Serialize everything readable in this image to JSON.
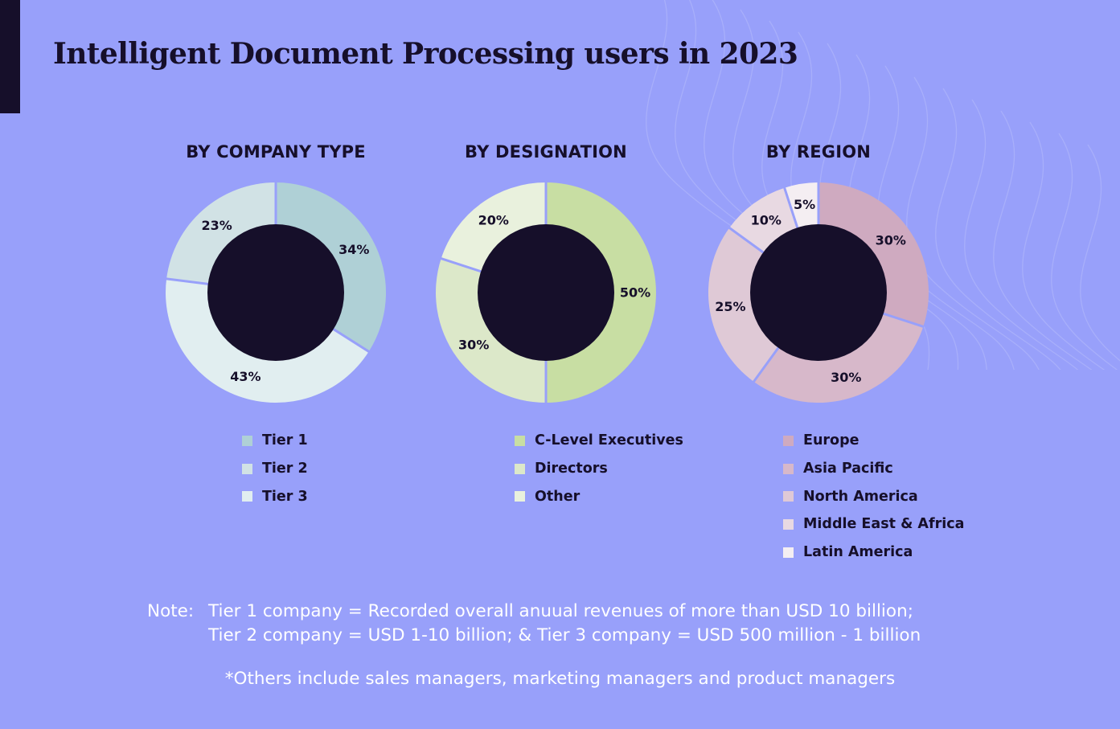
{
  "title": "Intelligent Document Processing users in 2023",
  "colors": {
    "background": "#98a0fa",
    "donut_hole": "#160f2a",
    "text_dark": "#160f2a",
    "text_light": "#ffffff"
  },
  "chart_data": [
    {
      "type": "pie",
      "style": "donut",
      "title": "BY COMPANY TYPE",
      "categories": [
        "Tier 1",
        "Tier 2",
        "Tier 3"
      ],
      "values": [
        34,
        23,
        43
      ],
      "labels": [
        "34%",
        "23%",
        "43%"
      ],
      "draw_order": [
        0,
        2,
        1
      ],
      "colors": [
        "#afd0d6",
        "#d1e2e5",
        "#e1eef0"
      ],
      "legend_position": "bottom"
    },
    {
      "type": "pie",
      "style": "donut",
      "title": "BY DESIGNATION",
      "categories": [
        "C-Level Executives",
        "Directors",
        "Other"
      ],
      "values": [
        50,
        30,
        20
      ],
      "labels": [
        "50%",
        "30%",
        "20%"
      ],
      "draw_order": [
        0,
        1,
        2
      ],
      "colors": [
        "#c8dea3",
        "#dce8c9",
        "#e9f1dd"
      ],
      "legend_position": "bottom"
    },
    {
      "type": "pie",
      "style": "donut",
      "title": "BY REGION",
      "categories": [
        "Europe",
        "Asia Pacific",
        "North America",
        "Middle East & Africa",
        "Latin America"
      ],
      "values": [
        30,
        30,
        25,
        10,
        5
      ],
      "labels": [
        "30%",
        "30%",
        "25%",
        "10%",
        "5%"
      ],
      "draw_order": [
        0,
        1,
        2,
        3,
        4
      ],
      "colors": [
        "#cfaac0",
        "#d7b8ca",
        "#dfc9d6",
        "#e8d9e2",
        "#f4eef2"
      ],
      "legend_position": "bottom"
    }
  ],
  "note": {
    "label": "Note:",
    "line1": "Tier 1 company = Recorded overall anuual revenues of more than USD 10 billion;",
    "line2": "Tier 2 company = USD 1-10 billion; & Tier 3 company = USD 500 million - 1 billion"
  },
  "footnote": "*Others include sales managers, marketing managers and product managers"
}
